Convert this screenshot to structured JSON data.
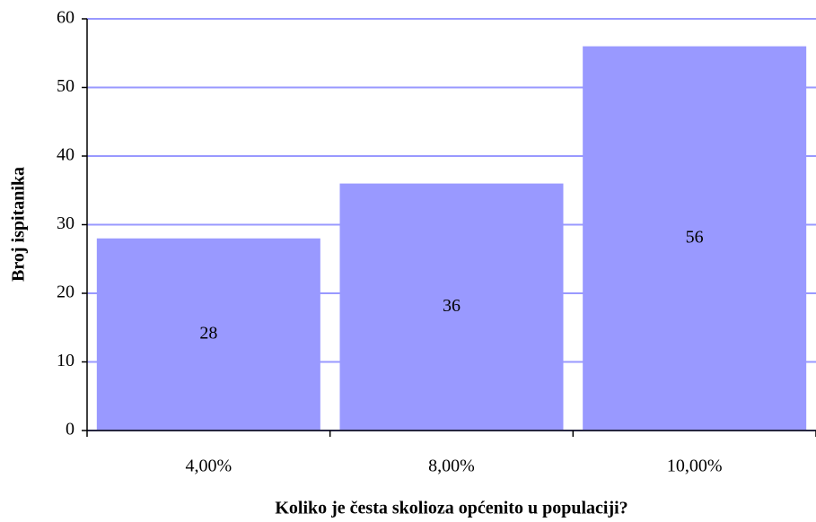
{
  "chart_data": {
    "type": "bar",
    "xlabel": "Koliko je česta skolioza općenito u populaciji?",
    "ylabel": "Broj ispitanika",
    "categories": [
      "4,00%",
      "8,00%",
      "10,00%"
    ],
    "values": [
      28,
      36,
      56
    ],
    "color": "#9999ff",
    "ylim": [
      0,
      60
    ],
    "yticks": [
      0,
      10,
      20,
      30,
      40,
      50,
      60
    ],
    "grid": true
  }
}
